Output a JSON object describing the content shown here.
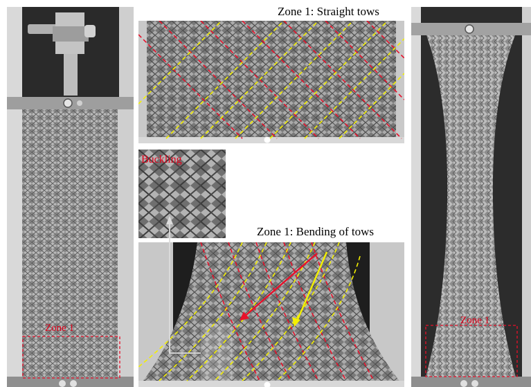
{
  "labels": {
    "zone1_straight": "Zone 1: Straight tows",
    "zone1_bending": "Zone 1: Bending of tows",
    "buckling": "Buckling",
    "zone_left": "Zone 1",
    "zone_right": "Zone 1"
  },
  "colors": {
    "red_dash": "#e8102a",
    "yellow_dash": "#f4f000",
    "background": "#ffffff",
    "frame_gray": "#9a9a9a"
  }
}
